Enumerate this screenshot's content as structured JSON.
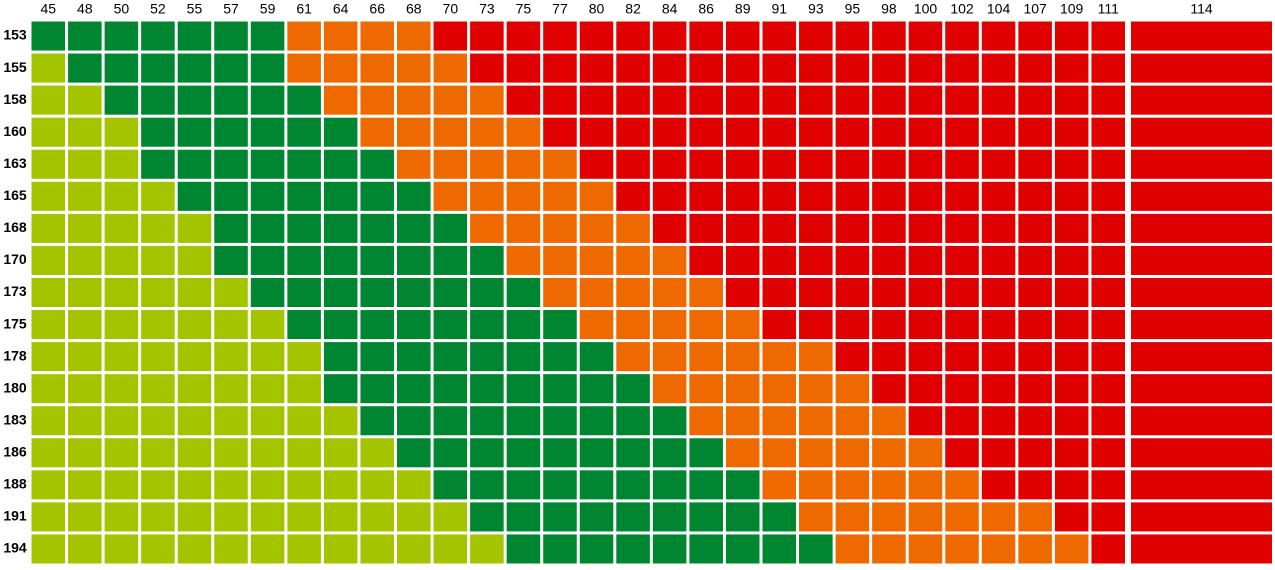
{
  "chart_data": {
    "type": "heatmap",
    "x": [
      45,
      48,
      50,
      52,
      55,
      57,
      59,
      61,
      64,
      66,
      68,
      70,
      73,
      75,
      77,
      80,
      82,
      84,
      86,
      89,
      91,
      93,
      95,
      98,
      100,
      102,
      104,
      107,
      109,
      111,
      114
    ],
    "y": [
      153,
      155,
      158,
      160,
      163,
      165,
      168,
      170,
      173,
      175,
      178,
      180,
      183,
      186,
      188,
      191,
      194
    ],
    "colors": [
      "#a4c400",
      "#008630",
      "#ee6a00",
      "#e00000"
    ],
    "cells": [
      [
        1,
        1,
        1,
        1,
        1,
        1,
        1,
        2,
        2,
        2,
        2,
        3,
        3,
        3,
        3,
        3,
        3,
        3,
        3,
        3,
        3,
        3,
        3,
        3,
        3,
        3,
        3,
        3,
        3,
        3,
        3
      ],
      [
        0,
        1,
        1,
        1,
        1,
        1,
        1,
        2,
        2,
        2,
        2,
        2,
        3,
        3,
        3,
        3,
        3,
        3,
        3,
        3,
        3,
        3,
        3,
        3,
        3,
        3,
        3,
        3,
        3,
        3,
        3
      ],
      [
        0,
        0,
        1,
        1,
        1,
        1,
        1,
        1,
        2,
        2,
        2,
        2,
        2,
        3,
        3,
        3,
        3,
        3,
        3,
        3,
        3,
        3,
        3,
        3,
        3,
        3,
        3,
        3,
        3,
        3,
        3
      ],
      [
        0,
        0,
        0,
        1,
        1,
        1,
        1,
        1,
        1,
        2,
        2,
        2,
        2,
        2,
        3,
        3,
        3,
        3,
        3,
        3,
        3,
        3,
        3,
        3,
        3,
        3,
        3,
        3,
        3,
        3,
        3
      ],
      [
        0,
        0,
        0,
        1,
        1,
        1,
        1,
        1,
        1,
        1,
        2,
        2,
        2,
        2,
        2,
        3,
        3,
        3,
        3,
        3,
        3,
        3,
        3,
        3,
        3,
        3,
        3,
        3,
        3,
        3,
        3
      ],
      [
        0,
        0,
        0,
        0,
        1,
        1,
        1,
        1,
        1,
        1,
        1,
        2,
        2,
        2,
        2,
        2,
        3,
        3,
        3,
        3,
        3,
        3,
        3,
        3,
        3,
        3,
        3,
        3,
        3,
        3,
        3
      ],
      [
        0,
        0,
        0,
        0,
        0,
        1,
        1,
        1,
        1,
        1,
        1,
        1,
        2,
        2,
        2,
        2,
        2,
        3,
        3,
        3,
        3,
        3,
        3,
        3,
        3,
        3,
        3,
        3,
        3,
        3,
        3
      ],
      [
        0,
        0,
        0,
        0,
        0,
        1,
        1,
        1,
        1,
        1,
        1,
        1,
        1,
        2,
        2,
        2,
        2,
        2,
        3,
        3,
        3,
        3,
        3,
        3,
        3,
        3,
        3,
        3,
        3,
        3,
        3
      ],
      [
        0,
        0,
        0,
        0,
        0,
        0,
        1,
        1,
        1,
        1,
        1,
        1,
        1,
        1,
        2,
        2,
        2,
        2,
        2,
        3,
        3,
        3,
        3,
        3,
        3,
        3,
        3,
        3,
        3,
        3,
        3
      ],
      [
        0,
        0,
        0,
        0,
        0,
        0,
        0,
        1,
        1,
        1,
        1,
        1,
        1,
        1,
        1,
        2,
        2,
        2,
        2,
        2,
        3,
        3,
        3,
        3,
        3,
        3,
        3,
        3,
        3,
        3,
        3
      ],
      [
        0,
        0,
        0,
        0,
        0,
        0,
        0,
        0,
        1,
        1,
        1,
        1,
        1,
        1,
        1,
        1,
        2,
        2,
        2,
        2,
        2,
        2,
        3,
        3,
        3,
        3,
        3,
        3,
        3,
        3,
        3
      ],
      [
        0,
        0,
        0,
        0,
        0,
        0,
        0,
        0,
        1,
        1,
        1,
        1,
        1,
        1,
        1,
        1,
        1,
        2,
        2,
        2,
        2,
        2,
        2,
        3,
        3,
        3,
        3,
        3,
        3,
        3,
        3
      ],
      [
        0,
        0,
        0,
        0,
        0,
        0,
        0,
        0,
        0,
        1,
        1,
        1,
        1,
        1,
        1,
        1,
        1,
        1,
        2,
        2,
        2,
        2,
        2,
        2,
        3,
        3,
        3,
        3,
        3,
        3,
        3
      ],
      [
        0,
        0,
        0,
        0,
        0,
        0,
        0,
        0,
        0,
        0,
        1,
        1,
        1,
        1,
        1,
        1,
        1,
        1,
        1,
        2,
        2,
        2,
        2,
        2,
        2,
        3,
        3,
        3,
        3,
        3,
        3
      ],
      [
        0,
        0,
        0,
        0,
        0,
        0,
        0,
        0,
        0,
        0,
        0,
        1,
        1,
        1,
        1,
        1,
        1,
        1,
        1,
        1,
        2,
        2,
        2,
        2,
        2,
        2,
        3,
        3,
        3,
        3,
        3
      ],
      [
        0,
        0,
        0,
        0,
        0,
        0,
        0,
        0,
        0,
        0,
        0,
        0,
        1,
        1,
        1,
        1,
        1,
        1,
        1,
        1,
        1,
        2,
        2,
        2,
        2,
        2,
        2,
        2,
        3,
        3,
        3
      ],
      [
        0,
        0,
        0,
        0,
        0,
        0,
        0,
        0,
        0,
        0,
        0,
        0,
        0,
        1,
        1,
        1,
        1,
        1,
        1,
        1,
        1,
        1,
        2,
        2,
        2,
        2,
        2,
        2,
        2,
        3,
        3
      ]
    ]
  }
}
